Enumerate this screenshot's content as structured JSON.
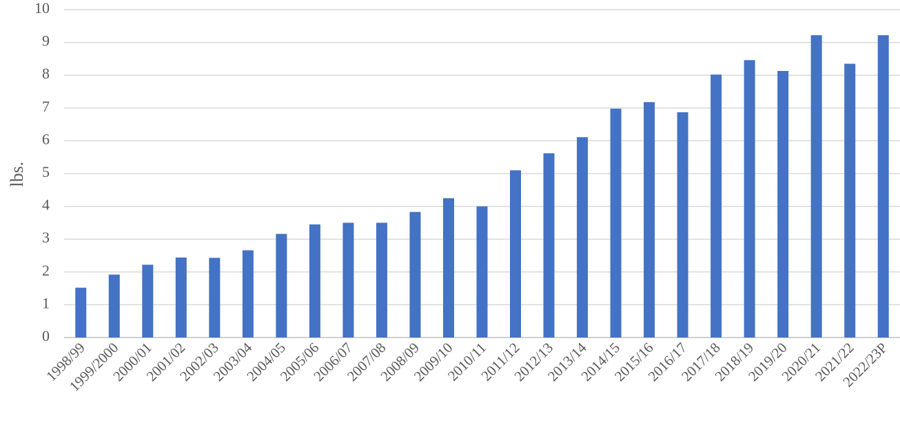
{
  "chart_data": {
    "type": "bar",
    "ylabel": "lbs.",
    "xlabel": "",
    "title": "",
    "ylim": [
      0,
      10
    ],
    "yticks": [
      0,
      1,
      2,
      3,
      4,
      5,
      6,
      7,
      8,
      9,
      10
    ],
    "grid": true,
    "bar_color": "#4472c4",
    "categories": [
      "1998/99",
      "1999/2000",
      "2000/01",
      "2001/02",
      "2002/03",
      "2003/04",
      "2004/05",
      "2005/06",
      "2006/07",
      "2007/08",
      "2008/09",
      "2009/10",
      "2010/11",
      "2011/12",
      "2012/13",
      "2013/14",
      "2014/15",
      "2015/16",
      "2016/17",
      "2017/18",
      "2018/19",
      "2019/20",
      "2020/21",
      "2021/22",
      "2022/23P"
    ],
    "values": [
      1.52,
      1.92,
      2.22,
      2.44,
      2.43,
      2.66,
      3.16,
      3.45,
      3.5,
      3.5,
      3.83,
      4.25,
      4.0,
      5.1,
      5.62,
      6.11,
      6.98,
      7.18,
      6.87,
      8.02,
      8.46,
      8.13,
      9.22,
      8.35,
      9.22
    ]
  }
}
